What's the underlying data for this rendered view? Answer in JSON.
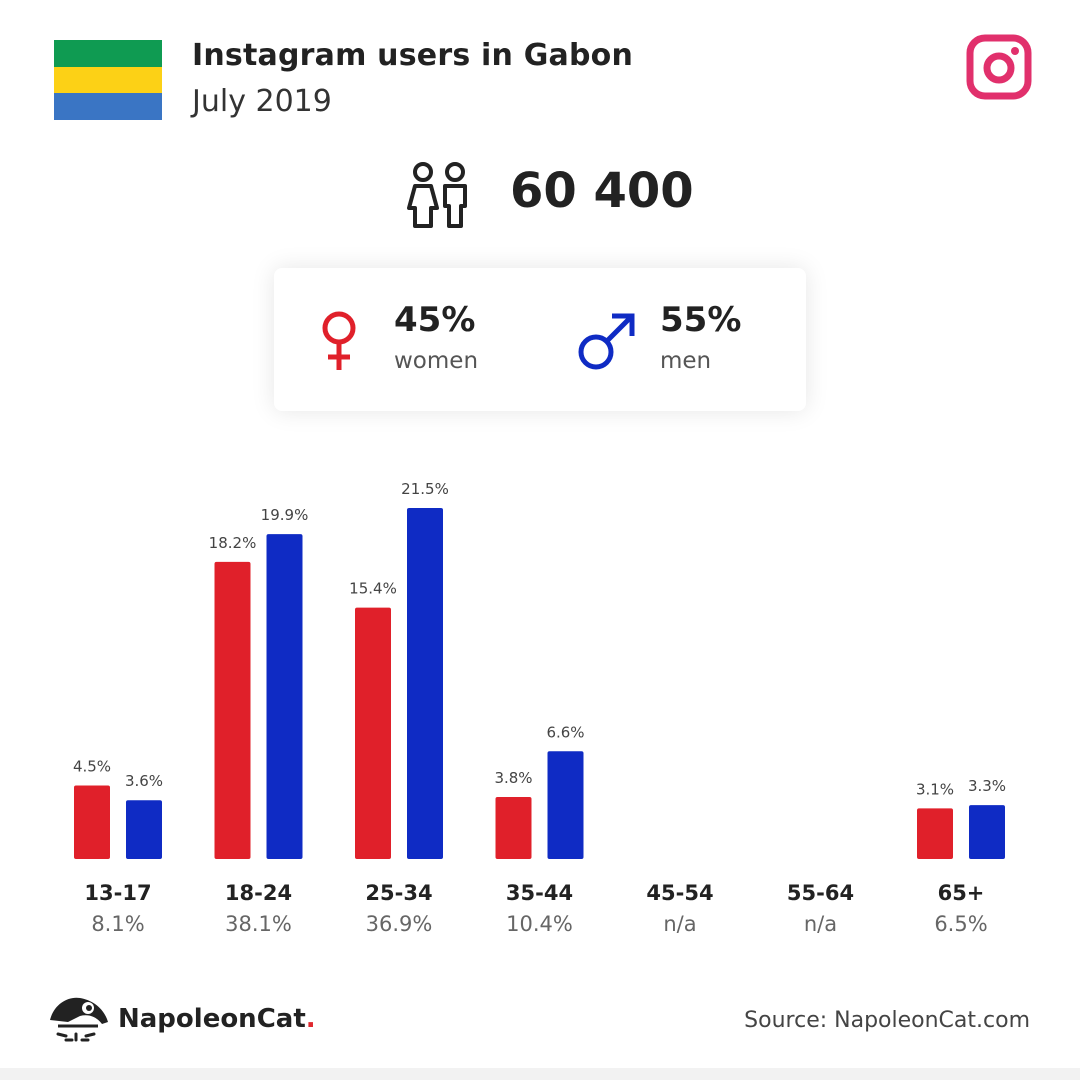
{
  "header": {
    "title": "Instagram users in Gabon",
    "subtitle": "July 2019",
    "flag_colors": [
      "#0f9b52",
      "#fcd116",
      "#3a75c4"
    ],
    "instagram_icon": "instagram-icon",
    "instagram_color": "#e1306c"
  },
  "total": {
    "value": "60 400",
    "icon": "people-icon"
  },
  "gender": {
    "women_pct": "45%",
    "women_label": "women",
    "women_color": "#e0202a",
    "men_pct": "55%",
    "men_label": "men",
    "men_color": "#0f2bc4"
  },
  "chart_data": {
    "type": "bar",
    "categories": [
      "13-17",
      "18-24",
      "25-34",
      "35-44",
      "45-54",
      "55-64",
      "65+"
    ],
    "category_totals": [
      "8.1%",
      "38.1%",
      "36.9%",
      "10.4%",
      "n/a",
      "n/a",
      "6.5%"
    ],
    "series": [
      {
        "name": "women",
        "color": "#e0202a",
        "values": [
          4.5,
          18.2,
          15.4,
          3.8,
          null,
          null,
          3.1
        ],
        "labels": [
          "4.5%",
          "18.2%",
          "15.4%",
          "3.8%",
          "",
          "",
          "3.1%"
        ]
      },
      {
        "name": "men",
        "color": "#0f2bc4",
        "values": [
          3.6,
          19.9,
          21.5,
          6.6,
          null,
          null,
          3.3
        ],
        "labels": [
          "3.6%",
          "19.9%",
          "21.5%",
          "6.6%",
          "",
          "",
          "3.3%"
        ]
      }
    ],
    "ylim": [
      0,
      21.5
    ]
  },
  "footer": {
    "brand": "NapoleonCat",
    "brand_dot": ".",
    "logo_icon": "napoleoncat-logo-icon",
    "source": "Source: NapoleonCat.com"
  }
}
